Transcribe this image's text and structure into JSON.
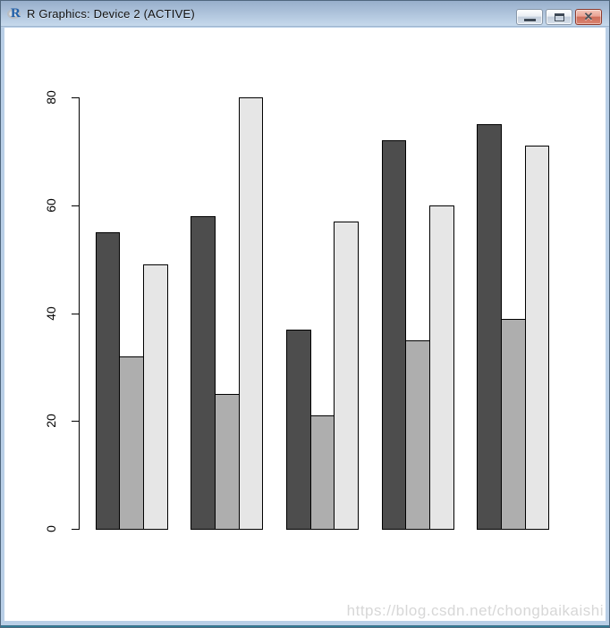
{
  "window": {
    "title": "R Graphics: Device 2 (ACTIVE)",
    "app_icon": "r-logo-icon",
    "app_icon_letter": "R",
    "controls": {
      "minimize_icon": "minimize-icon",
      "maximize_icon": "maximize-icon",
      "close_icon": "close-icon",
      "close_glyph": "✕"
    }
  },
  "chart_data": {
    "type": "bar",
    "grouped": true,
    "categories": [
      "",
      "",
      "",
      "",
      ""
    ],
    "series": [
      {
        "name": "dark-gray",
        "color": "#4D4D4D",
        "values": [
          55,
          58,
          37,
          72,
          75
        ]
      },
      {
        "name": "medium-gray",
        "color": "#AEAEAE",
        "values": [
          32,
          25,
          21,
          35,
          39
        ]
      },
      {
        "name": "light-gray",
        "color": "#E6E6E6",
        "values": [
          49,
          80,
          57,
          60,
          71
        ]
      }
    ],
    "title": "",
    "xlabel": "",
    "ylabel": "",
    "yticks": [
      0,
      20,
      40,
      60,
      80
    ],
    "ylim": [
      0,
      80
    ],
    "grid": false,
    "legend": false,
    "bar_border_color": "#000000",
    "background": "#FFFFFF"
  },
  "watermark": {
    "text": "https://blog.csdn.net/chongbaikaishi"
  }
}
